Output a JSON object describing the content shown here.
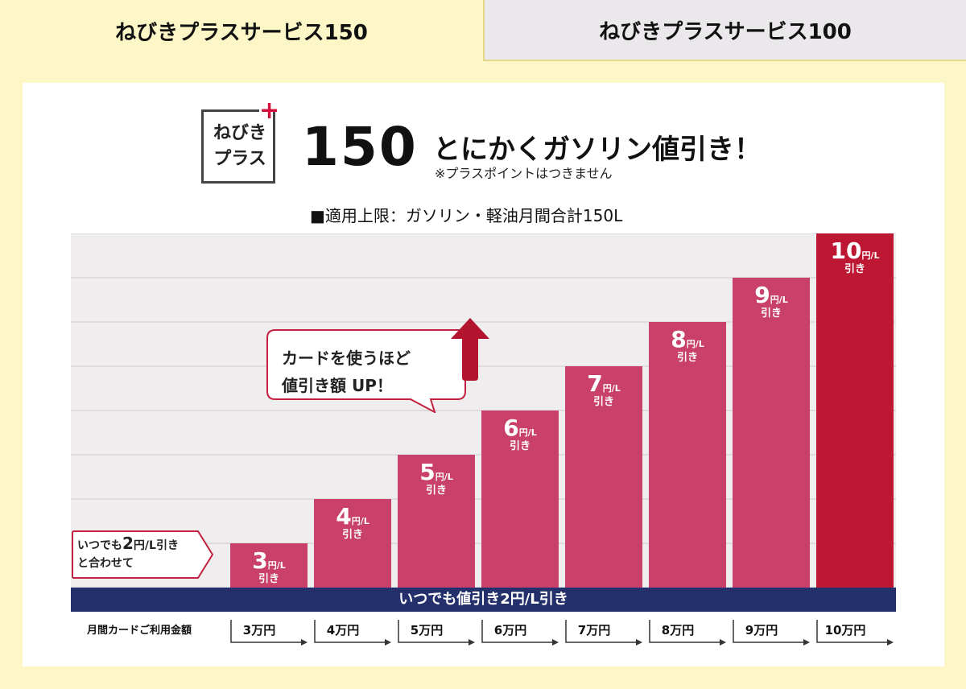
{
  "tabs": [
    {
      "label": "ねびきプラスサービス150"
    },
    {
      "label": "ねびきプラスサービス100"
    }
  ],
  "header": {
    "logo_line1": "ねびき",
    "logo_line2": "プラス",
    "logo_plus": "+",
    "big_number": "150",
    "catchphrase": "とにかくガソリン値引き！",
    "note": "※プラスポイントはつきません",
    "limit": "■適用上限：ガソリン・軽油月間合計150L"
  },
  "callout": {
    "line1": "カードを使うほど",
    "line2": "値引き額 UP！"
  },
  "base_note": {
    "prefix": "いつでも",
    "value": "2",
    "suffix": "円/L引き",
    "line2": "と合わせて"
  },
  "chart_data": {
    "type": "bar",
    "categories": [
      "3万円",
      "4万円",
      "5万円",
      "6万円",
      "7万円",
      "8万円",
      "9万円",
      "10万円"
    ],
    "values": [
      3,
      4,
      5,
      6,
      7,
      8,
      9,
      10
    ],
    "value_unit": "円/L",
    "value_suffix": "引き",
    "xlabel": "月間カードご利用金額",
    "ylim": [
      2,
      10
    ],
    "grid": true,
    "base_band_label": "いつでも値引き2円/L引き",
    "colors": {
      "bar": "#c9406a",
      "bar_highlight": "#be1733",
      "band": "#23306b",
      "grid": "#cccccc",
      "plot_bg": "#efedee"
    }
  }
}
